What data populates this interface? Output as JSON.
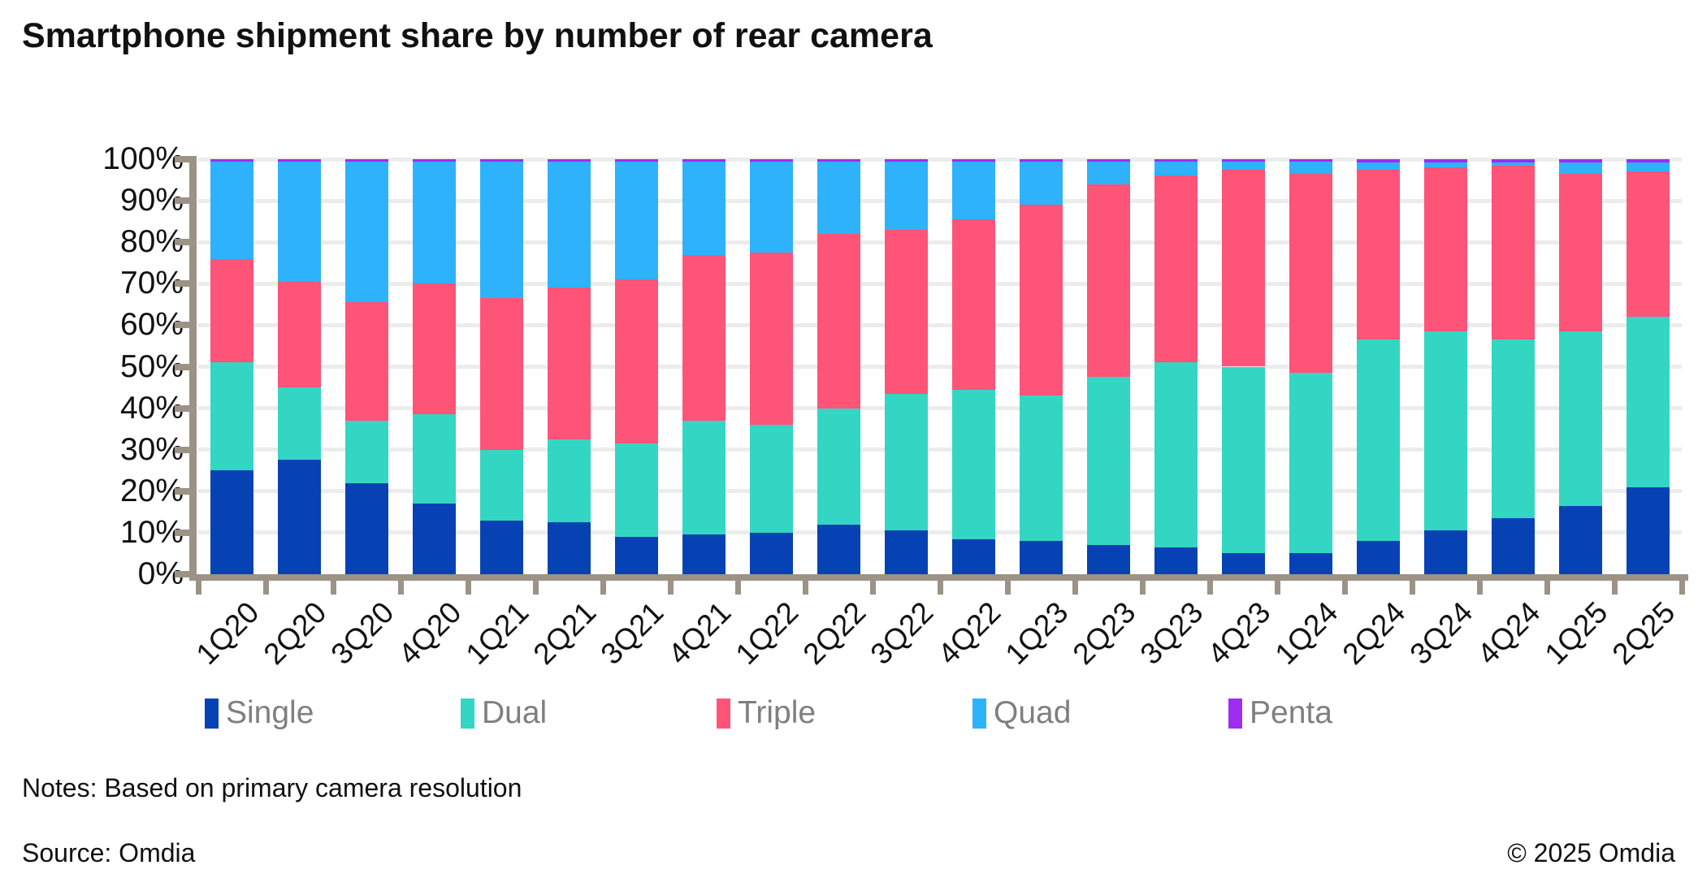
{
  "title": "Smartphone shipment share by number of rear camera",
  "chart_data": {
    "type": "bar",
    "stacked": true,
    "title": "Smartphone shipment share by number of rear camera",
    "xlabel": "",
    "ylabel": "",
    "ylim": [
      0,
      100
    ],
    "ytick_step": 10,
    "ytick_labels": [
      "0%",
      "10%",
      "20%",
      "30%",
      "40%",
      "50%",
      "60%",
      "70%",
      "80%",
      "90%",
      "100%"
    ],
    "grid": true,
    "legend_position": "bottom",
    "categories": [
      "1Q20",
      "2Q20",
      "3Q20",
      "4Q20",
      "1Q21",
      "2Q21",
      "3Q21",
      "4Q21",
      "1Q22",
      "2Q22",
      "3Q22",
      "4Q22",
      "1Q23",
      "2Q23",
      "3Q23",
      "4Q23",
      "1Q24",
      "2Q24",
      "3Q24",
      "4Q24",
      "1Q25",
      "2Q25"
    ],
    "series": [
      {
        "name": "Single",
        "color": "#0742B5",
        "values": [
          25,
          27.5,
          22,
          17,
          13,
          12.5,
          9,
          9.5,
          10,
          12,
          10.5,
          8.5,
          8,
          7,
          6.5,
          5,
          5,
          8,
          10.5,
          13.5,
          16.5,
          21
        ]
      },
      {
        "name": "Dual",
        "color": "#33D6C3",
        "values": [
          26,
          17.5,
          15,
          21.5,
          17,
          20,
          22.5,
          27.5,
          26,
          28,
          33,
          36,
          35,
          40.5,
          44.5,
          45,
          43.5,
          48.5,
          48,
          43,
          42,
          41
        ]
      },
      {
        "name": "Triple",
        "color": "#FD5478",
        "values": [
          25,
          25.5,
          28.5,
          31.5,
          36.5,
          36.5,
          39.5,
          40,
          41.5,
          42,
          39.5,
          41,
          46,
          46.5,
          45,
          47.5,
          48,
          41,
          39.5,
          42,
          38,
          35
        ]
      },
      {
        "name": "Quad",
        "color": "#2EB2FB",
        "values": [
          23.5,
          29,
          34,
          29.5,
          33,
          30.5,
          28.5,
          22.5,
          22,
          17.5,
          16.5,
          14,
          10.5,
          5.5,
          3.5,
          2,
          3,
          1.7,
          1.2,
          0.7,
          2.7,
          2.2
        ]
      },
      {
        "name": "Penta",
        "color": "#9D2EF1",
        "values": [
          0.5,
          0.5,
          0.5,
          0.5,
          0.5,
          0.5,
          0.5,
          0.5,
          0.5,
          0.5,
          0.5,
          0.5,
          0.5,
          0.5,
          0.5,
          0.5,
          0.5,
          0.8,
          0.8,
          0.8,
          0.8,
          0.8
        ]
      }
    ]
  },
  "legend": {
    "items": [
      {
        "label": "Single",
        "color": "#0742B5"
      },
      {
        "label": "Dual",
        "color": "#33D6C3"
      },
      {
        "label": "Triple",
        "color": "#FD5478"
      },
      {
        "label": "Quad",
        "color": "#2EB2FB"
      },
      {
        "label": "Penta",
        "color": "#9D2EF1"
      }
    ]
  },
  "footer": {
    "notes": "Notes: Based on primary camera resolution",
    "source": "Source: Omdia",
    "copyright": "© 2025 Omdia"
  },
  "colors": {
    "axis": "#9C9286",
    "grid": "#ECECEC",
    "text": "#111111",
    "legend_text": "#7F7F7F",
    "background": "#FFFFFF"
  }
}
